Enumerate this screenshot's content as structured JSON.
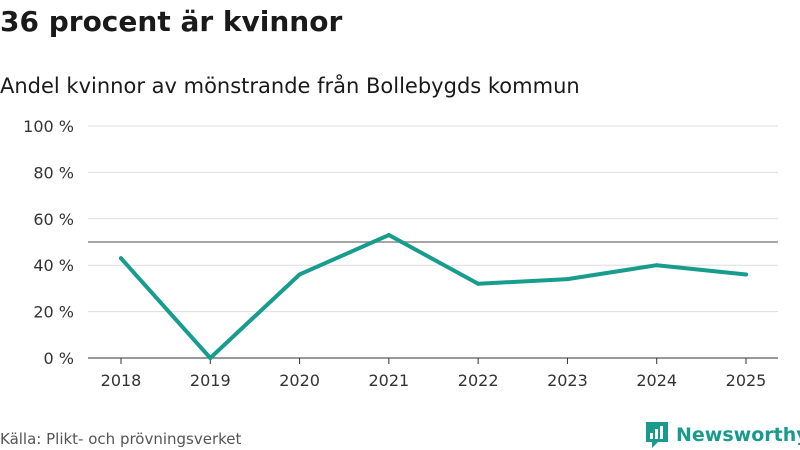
{
  "title": "36 procent är kvinnor",
  "subtitle": "Andel kvinnor av mönstrande från Bollebygds kommun",
  "source": "Källa: Plikt- och prövningsverket",
  "brand": "Newsworthy",
  "colors": {
    "line": "#179c8e",
    "reference": "#888888",
    "grid": "#dddddd",
    "brand": "#1a9a8c"
  },
  "chart_data": {
    "type": "line",
    "categories": [
      "2018",
      "2019",
      "2020",
      "2021",
      "2022",
      "2023",
      "2024",
      "2025"
    ],
    "series": [
      {
        "name": "Andel kvinnor",
        "values": [
          43,
          0,
          36,
          53,
          32,
          34,
          40,
          36
        ]
      }
    ],
    "reference_line": 50,
    "ylim": [
      0,
      100
    ],
    "yticks": [
      0,
      20,
      40,
      60,
      80,
      100
    ],
    "ytick_labels": [
      "0 %",
      "20 %",
      "40 %",
      "60 %",
      "80 %",
      "100 %"
    ],
    "xlabel": "",
    "ylabel": "",
    "grid": true
  }
}
